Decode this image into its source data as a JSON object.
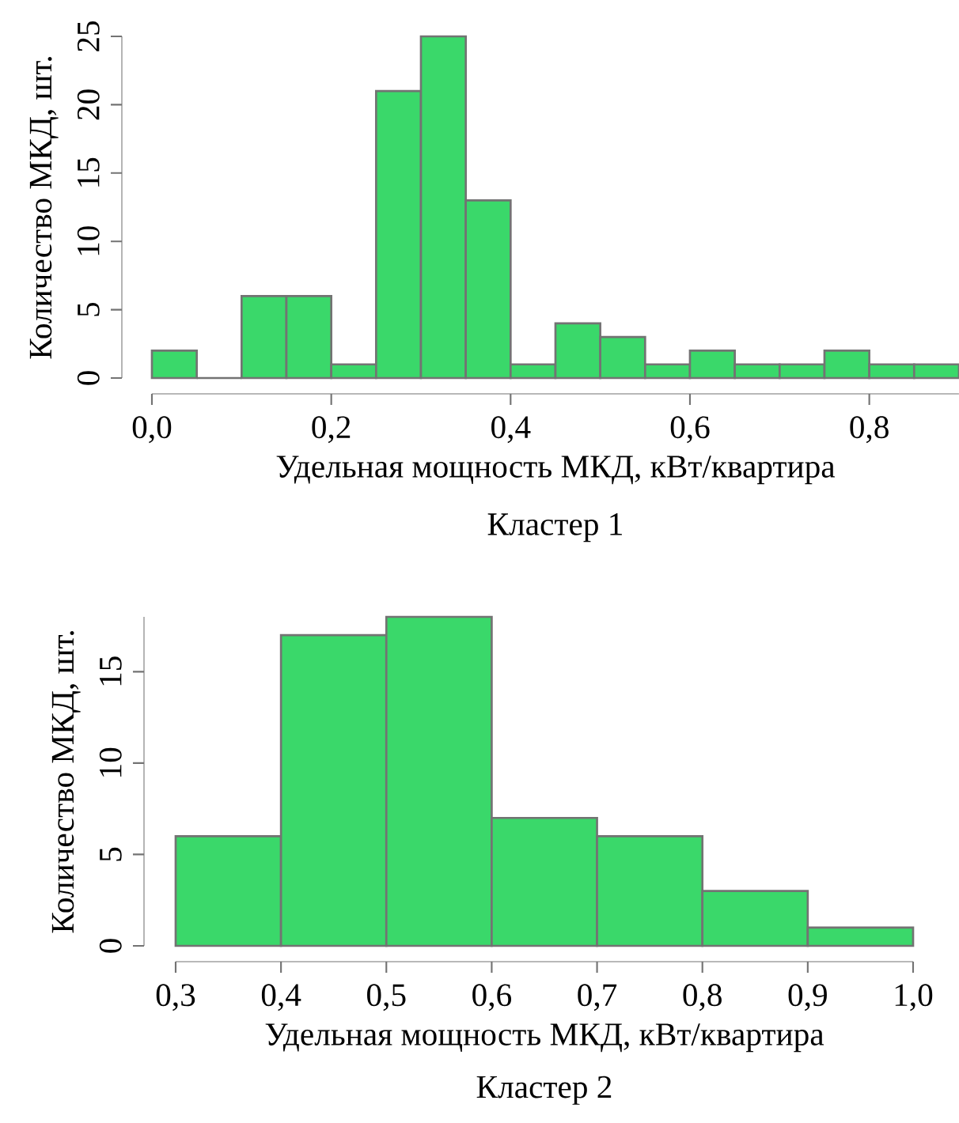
{
  "chart_data": [
    {
      "type": "histogram",
      "title": "Кластер 1",
      "xlabel": "Удельная мощность МКД, кВт/квартира",
      "ylabel": "Количество МКД, шт.",
      "bins": [
        0,
        0.05,
        0.1,
        0.15,
        0.2,
        0.25,
        0.3,
        0.35,
        0.4,
        0.45,
        0.5,
        0.55,
        0.6,
        0.65,
        0.7,
        0.75,
        0.8,
        0.85,
        0.9
      ],
      "values": [
        2,
        0,
        6,
        6,
        1,
        21,
        25,
        13,
        1,
        4,
        3,
        1,
        2,
        1,
        1,
        2,
        1,
        1
      ],
      "color": "#3ad86a",
      "xlim": [
        0,
        0.9
      ],
      "ylim": [
        0,
        25
      ],
      "xticks": [
        {
          "value": 0,
          "label": "0,0"
        },
        {
          "value": 0.2,
          "label": "0,2"
        },
        {
          "value": 0.4,
          "label": "0,4"
        },
        {
          "value": 0.6,
          "label": "0,6"
        },
        {
          "value": 0.8,
          "label": "0,8"
        }
      ],
      "yticks": [
        0,
        5,
        10,
        15,
        20,
        25
      ]
    },
    {
      "type": "histogram",
      "title": "Кластер 2",
      "xlabel": "Удельная мощность МКД, кВт/квартира",
      "ylabel": "Количество МКД, шт.",
      "bins": [
        0.3,
        0.4,
        0.5,
        0.6,
        0.7,
        0.8,
        0.9,
        1.0
      ],
      "values": [
        6,
        17,
        18,
        7,
        6,
        3,
        1
      ],
      "color": "#3ad86a",
      "xlim": [
        0.3,
        1.0
      ],
      "ylim": [
        0,
        18
      ],
      "xticks": [
        {
          "value": 0.3,
          "label": "0,3"
        },
        {
          "value": 0.4,
          "label": "0,4"
        },
        {
          "value": 0.5,
          "label": "0,5"
        },
        {
          "value": 0.6,
          "label": "0,6"
        },
        {
          "value": 0.7,
          "label": "0,7"
        },
        {
          "value": 0.8,
          "label": "0,8"
        },
        {
          "value": 0.9,
          "label": "0,9"
        },
        {
          "value": 1.0,
          "label": "1,0"
        }
      ],
      "yticks": [
        0,
        5,
        10,
        15
      ]
    }
  ]
}
